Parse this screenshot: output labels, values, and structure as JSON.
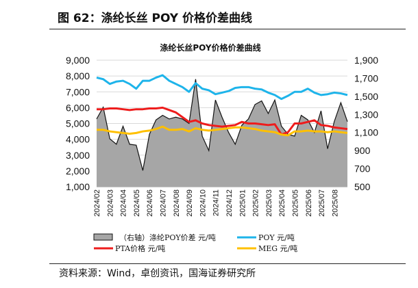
{
  "figure_title": "图 62：涤纶长丝 POY 价格价差曲线",
  "source": "资料来源：Wind，卓创资讯，国海证券研究所",
  "chart_data": {
    "type": "line",
    "title": "涤纶长丝POY价格价差曲线",
    "x_interval": "half-month, starting 2024/02",
    "x_tick_labels": [
      "2024/02",
      "2024/03",
      "2024/04",
      "2024/05",
      "2024/06",
      "2024/07",
      "2024/08",
      "2024/09",
      "2024/10",
      "2024/11",
      "2024/12",
      "2025/01",
      "2025/02",
      "2025/03",
      "2025/04",
      "2025/05",
      "2025/06",
      "2025/07",
      "2025/08"
    ],
    "y_left": {
      "min": 1000,
      "max": 9000,
      "ticks": [
        "1,000",
        "2,000",
        "3,000",
        "4,000",
        "5,000",
        "6,000",
        "7,000",
        "8,000",
        "9,000"
      ]
    },
    "y_right": {
      "min": 500,
      "max": 1900,
      "ticks": [
        "500",
        "700",
        "900",
        "1,100",
        "1,300",
        "1,500",
        "1,700",
        "1,900"
      ]
    },
    "grid": "horizontal",
    "legend_position": "bottom",
    "series": [
      {
        "name": "（右轴）涤纶POY价差 元/吨",
        "axis": "right",
        "kind": "area",
        "color": "#a6a6a6",
        "values": [
          1250,
          1380,
          1030,
          970,
          1170,
          970,
          960,
          680,
          1080,
          1240,
          1290,
          1250,
          1270,
          1250,
          1200,
          1690,
          1060,
          900,
          1460,
          1270,
          1100,
          970,
          1180,
          1250,
          1410,
          1450,
          1310,
          1460,
          1170,
          1080,
          1060,
          1290,
          1240,
          1100,
          1340,
          920,
          1220,
          1430,
          1220
        ]
      },
      {
        "name": "POY 元/吨",
        "axis": "left",
        "kind": "line",
        "color": "#1eb4ea",
        "values": [
          7900,
          7800,
          7500,
          7650,
          7700,
          7500,
          7200,
          7700,
          7700,
          7900,
          8050,
          7700,
          7500,
          7300,
          7000,
          7550,
          7200,
          7100,
          6850,
          6950,
          7050,
          7250,
          7300,
          7300,
          7200,
          7150,
          6950,
          6800,
          6550,
          6750,
          7000,
          7000,
          7200,
          6950,
          6800,
          6850,
          6950,
          6900,
          6800
        ]
      },
      {
        "name": "PTA价格 元/吨",
        "axis": "left",
        "kind": "line",
        "color": "#ee1c1c",
        "values": [
          5900,
          5900,
          5950,
          5950,
          5900,
          5850,
          5900,
          5900,
          5950,
          5950,
          6000,
          5850,
          5700,
          5400,
          5100,
          5200,
          5000,
          4900,
          4850,
          4800,
          4850,
          4900,
          5100,
          5000,
          5000,
          4950,
          4900,
          4950,
          4300,
          4450,
          5000,
          5000,
          5100,
          5200,
          4900,
          4850,
          4750,
          4700,
          4650
        ]
      },
      {
        "name": "MEG 元/吨",
        "axis": "left",
        "kind": "line",
        "color": "#ffc000",
        "values": [
          4600,
          4600,
          4500,
          4450,
          4400,
          4350,
          4400,
          4500,
          4550,
          4650,
          4800,
          4600,
          4600,
          4650,
          4500,
          4700,
          4600,
          4550,
          4600,
          4650,
          4700,
          4750,
          4750,
          4700,
          4650,
          4550,
          4500,
          4450,
          4300,
          4250,
          4500,
          4500,
          4550,
          4500,
          4500,
          4450,
          4500,
          4450,
          4400
        ]
      }
    ]
  }
}
